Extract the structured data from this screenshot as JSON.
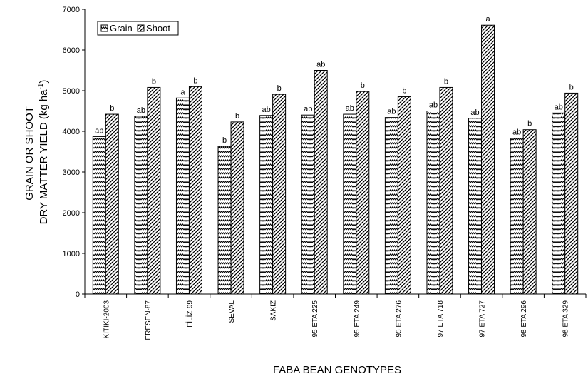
{
  "chart_data": {
    "type": "bar",
    "xlabel": "FABA BEAN GENOTYPES",
    "ylabel_line1": "GRAIN OR SHOOT",
    "ylabel_line2": "DRY MATTER YIELD (kg ha",
    "ylabel_sup": "-1",
    "ylabel_close": ")",
    "ylim": [
      0,
      7000
    ],
    "yticks": [
      0,
      1000,
      2000,
      3000,
      4000,
      5000,
      6000,
      7000
    ],
    "legend_placement": "top-left",
    "grid": false,
    "categories": [
      "KITIKI-2003",
      "ERESEN-87",
      "FİLİZ-99",
      "SEVAL",
      "SAKIZ",
      "95 ETA 225",
      "95 ETA 249",
      "95 ETA 276",
      "97 ETA 718",
      "97 ETA 727",
      "98 ETA 296",
      "98 ETA 329"
    ],
    "series": [
      {
        "name": "Grain",
        "pattern": "zigzag",
        "values": [
          3870,
          4370,
          4820,
          3630,
          4390,
          4400,
          4420,
          4340,
          4500,
          4320,
          3830,
          4450
        ],
        "labels": [
          "ab",
          "ab",
          "a",
          "b",
          "ab",
          "ab",
          "ab",
          "ab",
          "ab",
          "ab",
          "ab",
          "ab"
        ]
      },
      {
        "name": "Shoot",
        "pattern": "diagonal-hatch",
        "values": [
          4420,
          5080,
          5100,
          4230,
          4910,
          5500,
          4980,
          4850,
          5080,
          6610,
          4040,
          4940
        ],
        "labels": [
          "b",
          "b",
          "b",
          "b",
          "b",
          "ab",
          "b",
          "b",
          "b",
          "a",
          "b",
          "b"
        ]
      }
    ]
  }
}
